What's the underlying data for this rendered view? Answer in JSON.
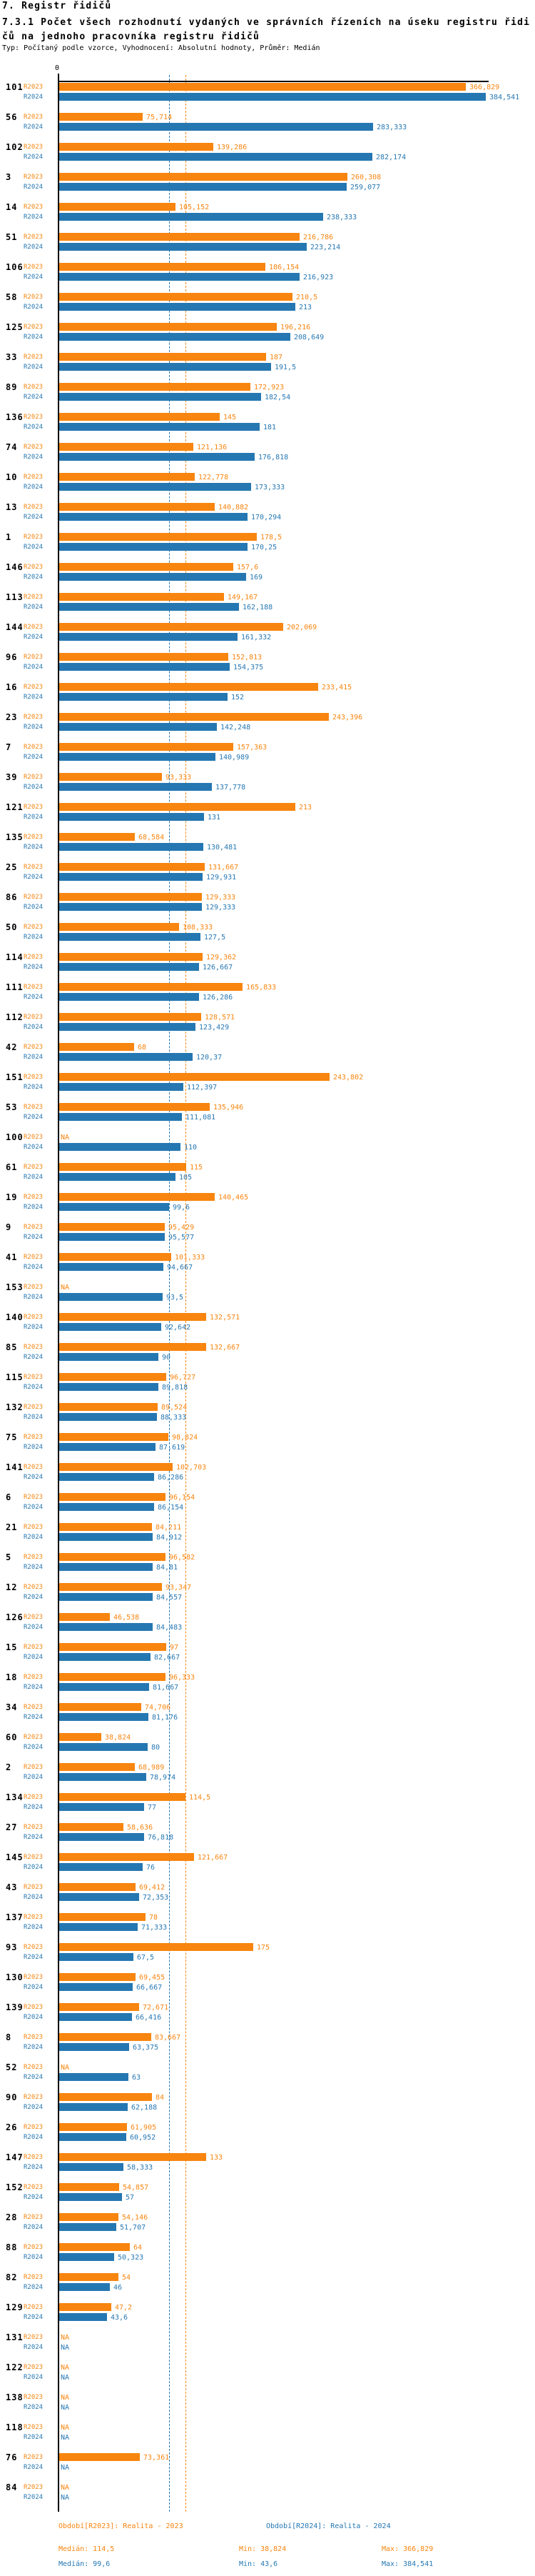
{
  "page": {
    "title": "7. Registr řidičů",
    "subtitle": "7.3.1 Počet všech rozhodnutí vydaných ve správních řízeních na úseku registru řidičů na jednoho pracovníka registru řidičů",
    "meta": "Typ: Počítaný podle vzorce, Vyhodnocení: Absolutní hodnoty, Průměr: Medián"
  },
  "axis": {
    "zero": "0"
  },
  "colors": {
    "r2023": "#F8850F",
    "r2024": "#2577B2",
    "axis": "#000000"
  },
  "legend": {
    "period_2023": "Období[R2023]: Realita - 2023",
    "period_2024": "Období[R2024]: Realita - 2024",
    "median_2023": "Medián: 114,5",
    "min_2023": "Min: 38,824",
    "max_2023": "Max: 366,829",
    "median_2024": "Medián: 99,6",
    "min_2024": "Min: 43,6",
    "max_2024": "Max: 384,541"
  },
  "chart_data": {
    "type": "bar",
    "orientation": "horizontal",
    "title": "7.3.1 Počet všech rozhodnutí vydaných ve správních řízeních na úseku registru řidičů na jednoho pracovníka registru řidičů",
    "na": "NA",
    "value_format": "decimal-comma",
    "xlim": [
      0,
      384.541
    ],
    "medians": {
      "R2023": 114.5,
      "R2024": 99.6
    },
    "categories": [
      "101",
      "56",
      "102",
      "3",
      "14",
      "51",
      "106",
      "58",
      "125",
      "33",
      "89",
      "136",
      "74",
      "10",
      "13",
      "1",
      "146",
      "113",
      "144",
      "96",
      "16",
      "23",
      "7",
      "39",
      "121",
      "135",
      "25",
      "86",
      "50",
      "114",
      "111",
      "112",
      "42",
      "151",
      "53",
      "100",
      "61",
      "19",
      "9",
      "41",
      "153",
      "140",
      "85",
      "115",
      "132",
      "75",
      "141",
      "6",
      "21",
      "5",
      "12",
      "126",
      "15",
      "18",
      "34",
      "60",
      "2",
      "134",
      "27",
      "145",
      "43",
      "137",
      "93",
      "130",
      "139",
      "8",
      "52",
      "90",
      "26",
      "147",
      "152",
      "28",
      "88",
      "82",
      "129",
      "131",
      "122",
      "138",
      "118",
      "76",
      "84"
    ],
    "series": [
      {
        "name": "R2023",
        "color": "#F8850F",
        "values": [
          366.829,
          75.714,
          139.286,
          260.308,
          105.152,
          216.786,
          186.154,
          210.5,
          196.216,
          187,
          172.923,
          145,
          121.136,
          122.778,
          140.882,
          178.5,
          157.6,
          149.167,
          202.069,
          152.813,
          233.415,
          243.396,
          157.363,
          93.333,
          213,
          68.584,
          131.667,
          129.333,
          108.333,
          129.362,
          165.833,
          128.571,
          68,
          243.802,
          135.946,
          null,
          115,
          140.465,
          95.429,
          101.333,
          null,
          132.571,
          132.667,
          96.727,
          89.524,
          98.824,
          102.703,
          96.154,
          84.211,
          96.582,
          93.347,
          46.538,
          97,
          96.333,
          74.706,
          38.824,
          68.989,
          114.5,
          58.636,
          121.667,
          69.412,
          78,
          175,
          69.455,
          72.671,
          83.667,
          null,
          84,
          61.905,
          133,
          54.857,
          54.146,
          64,
          54,
          47.2,
          null,
          null,
          null,
          null,
          73.361,
          null
        ]
      },
      {
        "name": "R2024",
        "color": "#2577B2",
        "values": [
          384.541,
          283.333,
          282.174,
          259.077,
          238.333,
          223.214,
          216.923,
          213,
          208.649,
          191.5,
          182.54,
          181,
          176.818,
          173.333,
          170.294,
          170.25,
          169,
          162.188,
          161.332,
          154.375,
          152,
          142.248,
          140.989,
          137.778,
          131,
          130.481,
          129.931,
          129.333,
          127.5,
          126.667,
          126.286,
          123.429,
          120.37,
          112.397,
          111.081,
          110,
          105,
          99.6,
          95.577,
          94.667,
          93.5,
          92.642,
          90,
          89.818,
          88.333,
          87.619,
          86.286,
          86.154,
          84.912,
          84.81,
          84.557,
          84.483,
          82.667,
          81.667,
          81.176,
          80,
          78.974,
          77,
          76.818,
          76,
          72.353,
          71.333,
          67.5,
          66.667,
          66.416,
          63.375,
          63,
          62.188,
          60.952,
          58.333,
          57,
          51.707,
          50.323,
          46,
          43.6,
          null,
          null,
          null,
          null,
          null,
          null
        ]
      }
    ]
  }
}
